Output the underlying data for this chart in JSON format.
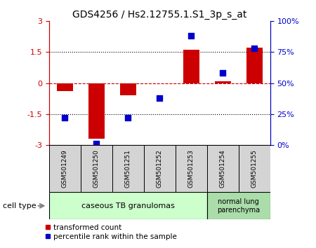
{
  "title": "GDS4256 / Hs2.12755.1.S1_3p_s_at",
  "samples": [
    "GSM501249",
    "GSM501250",
    "GSM501251",
    "GSM501252",
    "GSM501253",
    "GSM501254",
    "GSM501255"
  ],
  "red_values": [
    -0.4,
    -2.7,
    -0.6,
    0.0,
    1.6,
    0.1,
    1.7
  ],
  "blue_values": [
    22,
    1,
    22,
    38,
    88,
    58,
    78
  ],
  "ylim_left": [
    -3,
    3
  ],
  "ylim_right": [
    0,
    100
  ],
  "yticks_left": [
    -3,
    -1.5,
    0,
    1.5,
    3
  ],
  "yticks_right": [
    0,
    25,
    50,
    75,
    100
  ],
  "ytick_labels_right": [
    "0%",
    "25%",
    "50%",
    "75%",
    "100%"
  ],
  "hlines_dotted": [
    -1.5,
    1.5
  ],
  "hline_dashed": 0,
  "red_color": "#cc0000",
  "blue_color": "#0000cc",
  "bar_width": 0.5,
  "marker_size": 40,
  "group1_n": 5,
  "group2_n": 2,
  "group1_label": "caseous TB granulomas",
  "group2_label": "normal lung\nparenchyma",
  "group1_color": "#ccffcc",
  "group2_color": "#aaddaa",
  "cell_type_label": "cell type",
  "legend_red": "transformed count",
  "legend_blue": "percentile rank within the sample"
}
